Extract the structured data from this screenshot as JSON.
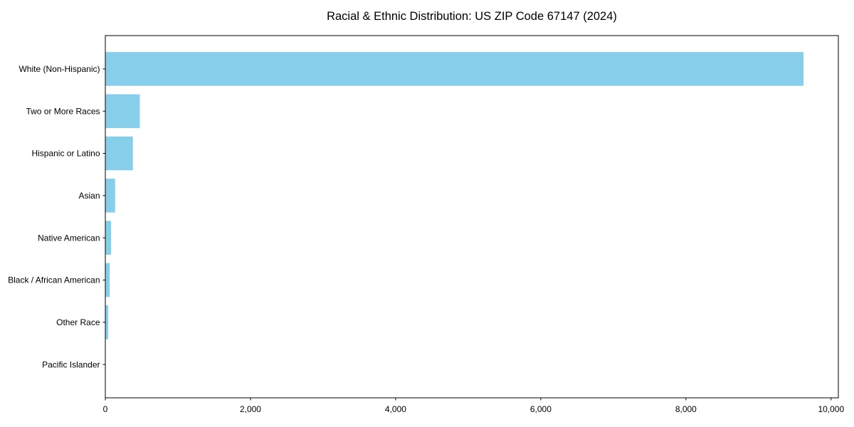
{
  "chart_data": {
    "type": "bar",
    "orientation": "horizontal",
    "title": "Racial & Ethnic Distribution: US ZIP Code 67147 (2024)",
    "categories": [
      "White (Non-Hispanic)",
      "Two or More Races",
      "Hispanic or Latino",
      "Asian",
      "Native American",
      "Black / African American",
      "Other Race",
      "Pacific Islander"
    ],
    "values": [
      9620,
      475,
      380,
      135,
      80,
      60,
      40,
      0
    ],
    "xlabel": "",
    "ylabel": "",
    "xlim": [
      0,
      10100
    ],
    "x_ticks": [
      0,
      2000,
      4000,
      6000,
      8000,
      10000
    ],
    "x_tick_labels": [
      "0",
      "2,000",
      "4,000",
      "6,000",
      "8,000",
      "10,000"
    ],
    "bar_color": "#87CEEB",
    "background_color": "#FFFFFF",
    "text_color": "#000000",
    "spine_color": "#000000",
    "grid": false,
    "legend": null
  }
}
